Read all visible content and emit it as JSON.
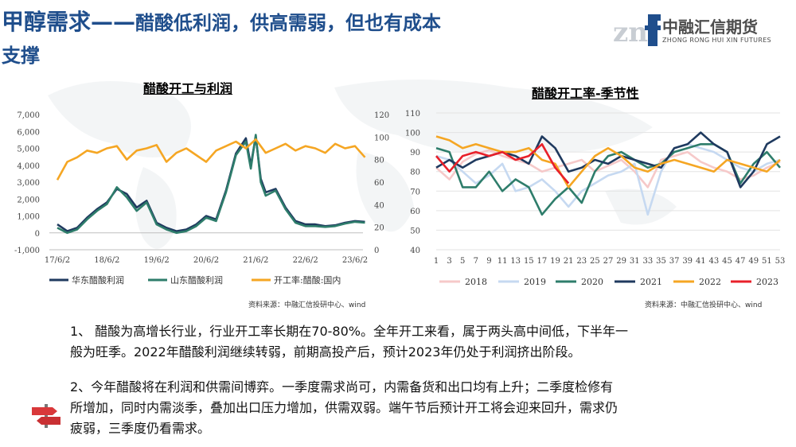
{
  "header": {
    "title_main": "甲醇需求——",
    "title_sub": "醋酸低利润，供高需弱，但也有成本",
    "title_line2": "支撑",
    "logo_cn": "中融汇信期货",
    "logo_en": "ZHONG RONG HUI XIN FUTURES"
  },
  "colors": {
    "title": "#1f4e8c",
    "east_profit": "#1f3a5f",
    "shandong_profit": "#2e7d6b",
    "operating_rate": "#f5a623",
    "y2018": "#f6c9c9",
    "y2019": "#c6d9f1",
    "y2020": "#2e7d6b",
    "y2021": "#1f3a5f",
    "y2022": "#f5a623",
    "y2023": "#e8202a"
  },
  "left_chart": {
    "title": "醋酸开工与利润",
    "source": "资料来源：中融汇信投研中心、wind",
    "chart_data": {
      "type": "line",
      "x_ticks": [
        "17/6/2",
        "18/6/2",
        "19/6/2",
        "20/6/2",
        "21/6/2",
        "22/6/2",
        "23/6/2"
      ],
      "y_left_ticks": [
        "7,000",
        "6,000",
        "5,000",
        "4,000",
        "3,000",
        "2,000",
        "1,000",
        "0",
        "-1,000"
      ],
      "y_left_range": [
        -1000,
        7000
      ],
      "y_right_ticks": [
        "120",
        "100",
        "80",
        "60",
        "40",
        "20",
        "0"
      ],
      "y_right_range": [
        0,
        120
      ],
      "series": [
        {
          "name": "华东醋酸利润",
          "axis": "left",
          "x": [
            0,
            0.2,
            0.4,
            0.6,
            0.8,
            1.0,
            1.2,
            1.4,
            1.6,
            1.8,
            2.0,
            2.2,
            2.4,
            2.6,
            2.8,
            3.0,
            3.2,
            3.4,
            3.6,
            3.8,
            3.9,
            4.0,
            4.1,
            4.2,
            4.4,
            4.6,
            4.8,
            5.0,
            5.2,
            5.4,
            5.6,
            5.8,
            6.0,
            6.2
          ],
          "values": [
            500,
            100,
            300,
            900,
            1400,
            1800,
            2600,
            2300,
            1500,
            1900,
            600,
            300,
            100,
            200,
            500,
            1000,
            800,
            2500,
            4700,
            5600,
            4000,
            5700,
            3200,
            2400,
            2600,
            1500,
            700,
            500,
            500,
            400,
            450,
            600,
            700,
            650
          ]
        },
        {
          "name": "山东醋酸利润",
          "axis": "left",
          "x": [
            0,
            0.2,
            0.4,
            0.6,
            0.8,
            1.0,
            1.2,
            1.4,
            1.6,
            1.8,
            2.0,
            2.2,
            2.4,
            2.6,
            2.8,
            3.0,
            3.2,
            3.4,
            3.6,
            3.8,
            3.9,
            4.0,
            4.1,
            4.2,
            4.4,
            4.6,
            4.8,
            5.0,
            5.2,
            5.4,
            5.6,
            5.8,
            6.0,
            6.2
          ],
          "values": [
            300,
            0,
            200,
            800,
            1300,
            1700,
            2700,
            2100,
            1300,
            1800,
            500,
            200,
            0,
            100,
            400,
            900,
            700,
            2400,
            4600,
            5400,
            3800,
            5800,
            3000,
            2200,
            2500,
            1400,
            600,
            400,
            400,
            350,
            400,
            550,
            650,
            600
          ]
        },
        {
          "name": "开工率:醋酸:国内",
          "axis": "right",
          "x": [
            0,
            0.2,
            0.4,
            0.6,
            0.8,
            1.0,
            1.2,
            1.4,
            1.6,
            1.8,
            2.0,
            2.2,
            2.4,
            2.6,
            2.8,
            3.0,
            3.2,
            3.4,
            3.6,
            3.8,
            4.0,
            4.2,
            4.4,
            4.6,
            4.8,
            5.0,
            5.2,
            5.4,
            5.6,
            5.8,
            6.0,
            6.2
          ],
          "values": [
            62,
            78,
            82,
            88,
            86,
            90,
            92,
            80,
            88,
            90,
            93,
            78,
            86,
            90,
            84,
            78,
            88,
            92,
            96,
            90,
            98,
            86,
            90,
            94,
            88,
            92,
            90,
            86,
            94,
            90,
            92,
            82
          ]
        }
      ],
      "xlabel": "",
      "ylabel": ""
    }
  },
  "right_chart": {
    "title": "醋酸开工率-季节性",
    "source": "资料来源：中融汇信投研中心、wind",
    "chart_data": {
      "type": "line",
      "x_ticks": [
        "1",
        "3",
        "5",
        "7",
        "9",
        "11",
        "13",
        "15",
        "17",
        "19",
        "21",
        "23",
        "25",
        "27",
        "29",
        "31",
        "33",
        "35",
        "37",
        "39",
        "41",
        "43",
        "45",
        "47",
        "49",
        "51",
        "53"
      ],
      "y_ticks": [
        "110",
        "100",
        "90",
        "80",
        "70",
        "60",
        "50",
        "40"
      ],
      "ylim": [
        40,
        110
      ],
      "series": [
        {
          "name": "2018",
          "values": [
            82,
            76,
            85,
            89,
            91,
            88,
            86,
            84,
            80,
            82,
            84,
            86,
            80,
            83,
            86,
            80,
            72,
            86,
            88,
            90,
            85,
            82,
            80,
            76,
            78,
            82,
            85
          ]
        },
        {
          "name": "2019",
          "values": [
            88,
            86,
            80,
            74,
            78,
            84,
            70,
            72,
            76,
            70,
            62,
            70,
            74,
            78,
            80,
            84,
            58,
            80,
            92,
            94,
            92,
            90,
            86,
            82,
            80,
            84,
            86
          ]
        },
        {
          "name": "2020",
          "values": [
            92,
            90,
            72,
            72,
            80,
            70,
            76,
            72,
            58,
            66,
            72,
            64,
            80,
            88,
            90,
            86,
            82,
            84,
            90,
            92,
            94,
            94,
            90,
            74,
            84,
            90,
            82
          ]
        },
        {
          "name": "2021",
          "values": [
            82,
            86,
            82,
            86,
            88,
            90,
            88,
            84,
            98,
            92,
            80,
            82,
            86,
            84,
            88,
            86,
            84,
            82,
            92,
            94,
            100,
            94,
            90,
            72,
            80,
            94,
            98
          ]
        },
        {
          "name": "2022",
          "values": [
            98,
            96,
            92,
            94,
            92,
            90,
            90,
            92,
            86,
            84,
            72,
            80,
            88,
            92,
            88,
            82,
            80,
            84,
            86,
            84,
            82,
            80,
            86,
            84,
            82,
            80,
            86
          ]
        },
        {
          "name": "2023",
          "values": [
            88,
            80,
            88,
            90,
            88,
            90,
            86,
            88,
            94,
            82,
            74,
            null,
            null,
            null,
            null,
            null,
            null,
            null,
            null,
            null,
            null,
            null,
            null,
            null,
            null,
            null,
            null
          ]
        }
      ],
      "xlabel": "",
      "ylabel": ""
    }
  },
  "paragraph1": {
    "line1": "1、  醋酸为高增长行业，行业开工率长期在70-80%。全年开工来看，属于两头高中间低，下半年一",
    "line2": "般为旺季。2022年醋酸利润继续转弱，前期高投产后，预计2023年仍处于利润挤出阶段。"
  },
  "paragraph2": {
    "line1": "2、今年醋酸将在利润和供需间博弈。一季度需求尚可，内需备货和出口均有上升；二季度检修有",
    "line2": "所增加，同时内需淡季，叠加出口压力增加，供需双弱。端午节后预计开工将会迎来回升，需求仍",
    "line3": "疲弱，三季度仍看需求。"
  }
}
